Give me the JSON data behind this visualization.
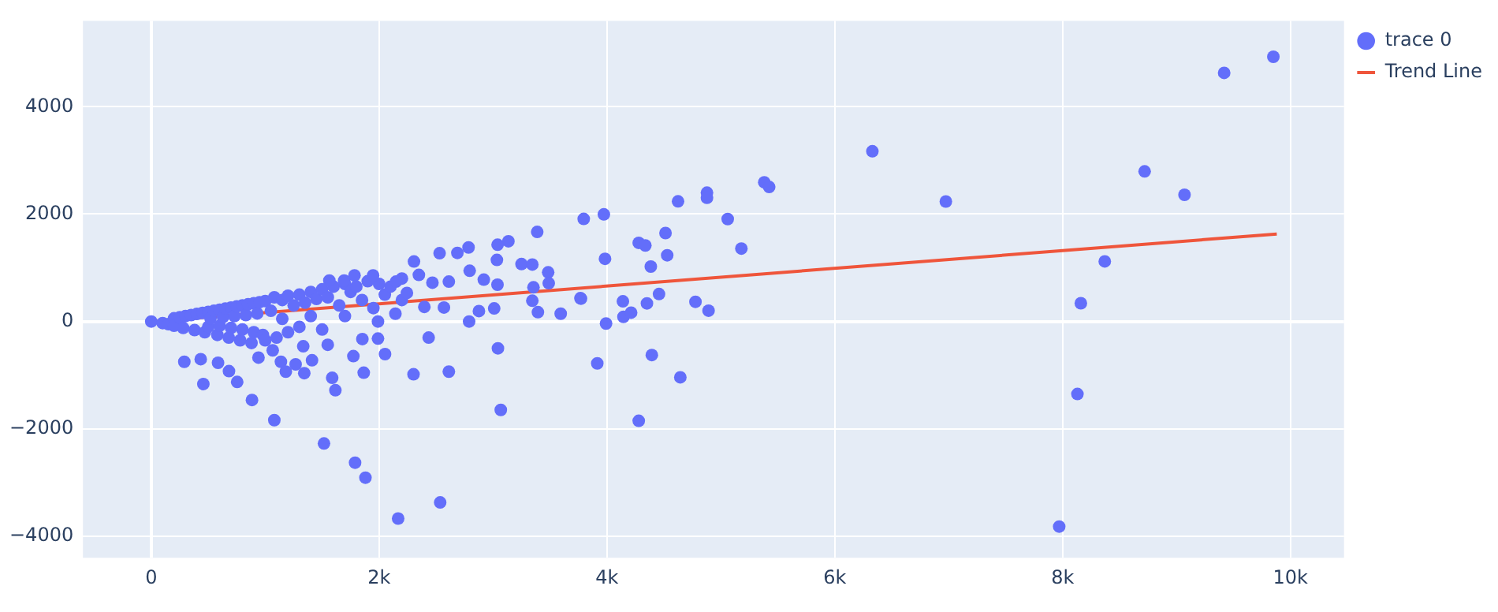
{
  "chart_data": {
    "type": "scatter",
    "xlim": [
      -600,
      10470
    ],
    "ylim": [
      -4400,
      5600
    ],
    "xticks": [
      0,
      {
        "value": 2000,
        "label": "2k"
      },
      {
        "value": 4000,
        "label": "4k"
      },
      {
        "value": 6000,
        "label": "6k"
      },
      {
        "value": 8000,
        "label": "8k"
      },
      {
        "value": 10000,
        "label": "10k"
      }
    ],
    "yticks": [
      {
        "value": -4000,
        "label": "−4000"
      },
      {
        "value": -2000,
        "label": "−2000"
      },
      0,
      2000,
      4000
    ],
    "grid": true,
    "legend": "top right",
    "marker": "circle",
    "series": [
      {
        "name": "trace 0",
        "color": "#636efa",
        "x": [
          0,
          100,
          150,
          200,
          200,
          250,
          280,
          300,
          350,
          380,
          400,
          450,
          470,
          500,
          500,
          520,
          550,
          580,
          600,
          600,
          630,
          650,
          680,
          700,
          700,
          730,
          750,
          780,
          800,
          800,
          830,
          850,
          880,
          900,
          900,
          930,
          950,
          980,
          1000,
          1000,
          1050,
          1080,
          1100,
          1150,
          1150,
          1200,
          1200,
          1250,
          1300,
          1300,
          1350,
          1400,
          1400,
          1450,
          1500,
          1500,
          1550,
          1600,
          1650,
          1700,
          1700,
          1750,
          1800,
          1850,
          1900,
          1950,
          2000,
          2050,
          2100,
          2200,
          2200,
          1563,
          1693,
          1784,
          1947,
          2148,
          2244,
          2349,
          2468,
          2612,
          3796,
          3388,
          3135,
          3040,
          2785,
          2687,
          2531,
          2306,
          3034,
          3250,
          3345,
          3484,
          2795,
          2919,
          3039,
          3355,
          3489,
          3767,
          3594,
          3394,
          3345,
          3010,
          2876,
          2790,
          2569,
          2397,
          2143,
          1990,
          2052,
          1990,
          1853,
          1774,
          1865,
          2302,
          2612,
          2435,
          3043,
          3068,
          2536,
          2167,
          1880,
          1789,
          1516,
          1080,
          884,
          754,
          457,
          290,
          434,
          586,
          682,
          941,
          1066,
          1138,
          1181,
          1267,
          1343,
          1411,
          1334,
          1588,
          1616,
          1549,
          9850,
          9418,
          6330,
          8720,
          9070,
          6975,
          8370,
          8160,
          8130,
          7970,
          3973,
          3983,
          3772,
          3992,
          3915,
          4140,
          4145,
          4212,
          4351,
          4457,
          4279,
          4337,
          4514,
          4529,
          4385,
          4624,
          4878,
          4878,
          5060,
          5180,
          5381,
          5424,
          4777,
          4892,
          4394,
          4644,
          4279
        ],
        "values": [
          0,
          -30,
          -50,
          60,
          -80,
          80,
          -120,
          100,
          120,
          -160,
          140,
          160,
          -200,
          180,
          -100,
          60,
          200,
          -250,
          220,
          -80,
          80,
          240,
          -300,
          260,
          -120,
          100,
          280,
          -350,
          300,
          -150,
          120,
          320,
          -400,
          340,
          -200,
          150,
          360,
          -250,
          380,
          -350,
          200,
          450,
          -300,
          400,
          50,
          480,
          -200,
          300,
          500,
          -100,
          350,
          550,
          100,
          420,
          600,
          -150,
          450,
          650,
          300,
          700,
          100,
          550,
          650,
          400,
          750,
          250,
          700,
          500,
          650,
          400,
          800,
          763,
          763,
          858,
          858,
          743,
          532,
          867,
          723,
          743,
          1910,
          1668,
          1494,
          1430,
          1379,
          1277,
          1272,
          1118,
          1147,
          1069,
          1061,
          916,
          945,
          780,
          685,
          636,
          714,
          434,
          145,
          173,
          387,
          243,
          194,
          0,
          260,
          271,
          145,
          0,
          -607,
          -318,
          -327,
          -645,
          -954,
          -983,
          -934,
          -300,
          -500,
          -1647,
          -3370,
          -3670,
          -2908,
          -2630,
          -2272,
          -1838,
          -1462,
          -1127,
          -1165,
          -751,
          -702,
          -769,
          -925,
          -673,
          -538,
          -751,
          -934,
          -798,
          -962,
          -722,
          -462,
          -1049,
          -1280,
          -433,
          4930,
          4630,
          3170,
          2795,
          2360,
          2235,
          1120,
          340,
          -1350,
          -3820,
          1995,
          1168,
          425,
          -38,
          -780,
          376,
          87,
          165,
          338,
          512,
          1465,
          1416,
          1647,
          1234,
          1023,
          2237,
          2399,
          2303,
          1908,
          1358,
          2592,
          2506,
          367,
          202,
          -624,
          -1040,
          -1850
        ]
      },
      {
        "name": "Trend Line",
        "type": "line",
        "color": "#ef553b",
        "marker": "none",
        "line_style": "solid",
        "x": [
          0,
          9880
        ],
        "values": [
          0,
          1630
        ]
      }
    ]
  }
}
